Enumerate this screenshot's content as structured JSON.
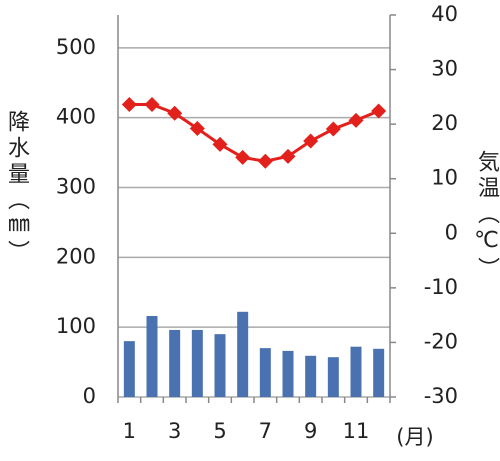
{
  "chart_data": {
    "type": "bar-line",
    "x_label": "(月)",
    "y_label": "降水量（㎜）",
    "y2_label": "気温（℃）",
    "categories": [
      "1",
      null,
      "3",
      null,
      "5",
      null,
      "7",
      null,
      "9",
      null,
      "11",
      null
    ],
    "series": [
      {
        "type": "bar",
        "color": "#4a72b0",
        "values": [
          80,
          116,
          96,
          96,
          90,
          122,
          70,
          66,
          59,
          57,
          72,
          69
        ]
      },
      {
        "type": "line",
        "color": "#e3211c",
        "axis": "y2",
        "values": [
          23.6,
          23.6,
          22,
          19.2,
          16.3,
          13.9,
          13.2,
          14.1,
          16.9,
          19.1,
          20.7,
          22.4
        ]
      }
    ],
    "ylim": [
      0,
      547
    ],
    "yticks": [
      0,
      100,
      200,
      300,
      400,
      500
    ],
    "y2lim": [
      -30,
      40
    ],
    "y2ticks": [
      -30,
      -20,
      -10,
      0,
      10,
      20,
      30,
      40
    ],
    "grid": true
  }
}
